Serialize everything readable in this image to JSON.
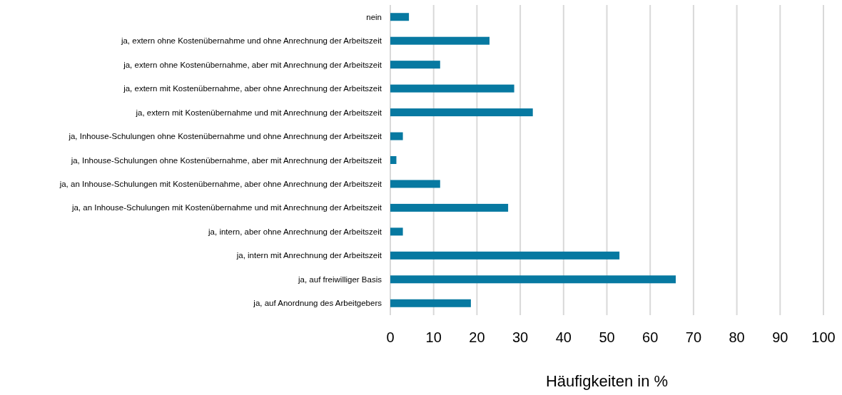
{
  "chart_data": {
    "type": "bar",
    "orientation": "horizontal",
    "xlabel": "Häufigkeiten in %",
    "categories": [
      "nein",
      "ja, extern ohne Kostenübernahme und ohne Anrechnung der Arbeitszeit",
      "ja, extern ohne Kostenübernahme, aber mit Anrechnung der Arbeitszeit",
      "ja, extern mit Kostenübernahme, aber ohne Anrechnung der Arbeitszeit",
      "ja, extern mit Kostenübernahme und mit Anrechnung der Arbeitszeit",
      "ja, Inhouse-Schulungen ohne Kostenübernahme und ohne Anrechnung der Arbeitszeit",
      "ja, Inhouse-Schulungen ohne Kostenübernahme, aber mit Anrechnung der Arbeitszeit",
      "ja, an Inhouse-Schulungen mit Kostenübernahme, aber ohne Anrechnung der Arbeitszeit",
      "ja, an Inhouse-Schulungen mit Kostenübernahme und mit Anrechnung der Arbeitszeit",
      "ja, intern, aber ohne Anrechnung der Arbeitszeit",
      "ja, intern mit Anrechnung der Arbeitszeit",
      "ja, auf freiwilliger Basis",
      "ja, auf Anordnung des Arbeitgebers"
    ],
    "values": [
      4.3,
      22.9,
      11.5,
      28.6,
      32.9,
      2.9,
      1.4,
      11.5,
      27.2,
      2.9,
      52.9,
      65.9,
      18.6
    ],
    "color": "#0779a1",
    "xlim": [
      0,
      100
    ],
    "xticks": [
      0,
      10,
      20,
      30,
      40,
      50,
      60,
      70,
      80,
      90,
      100
    ],
    "grid": "x"
  }
}
